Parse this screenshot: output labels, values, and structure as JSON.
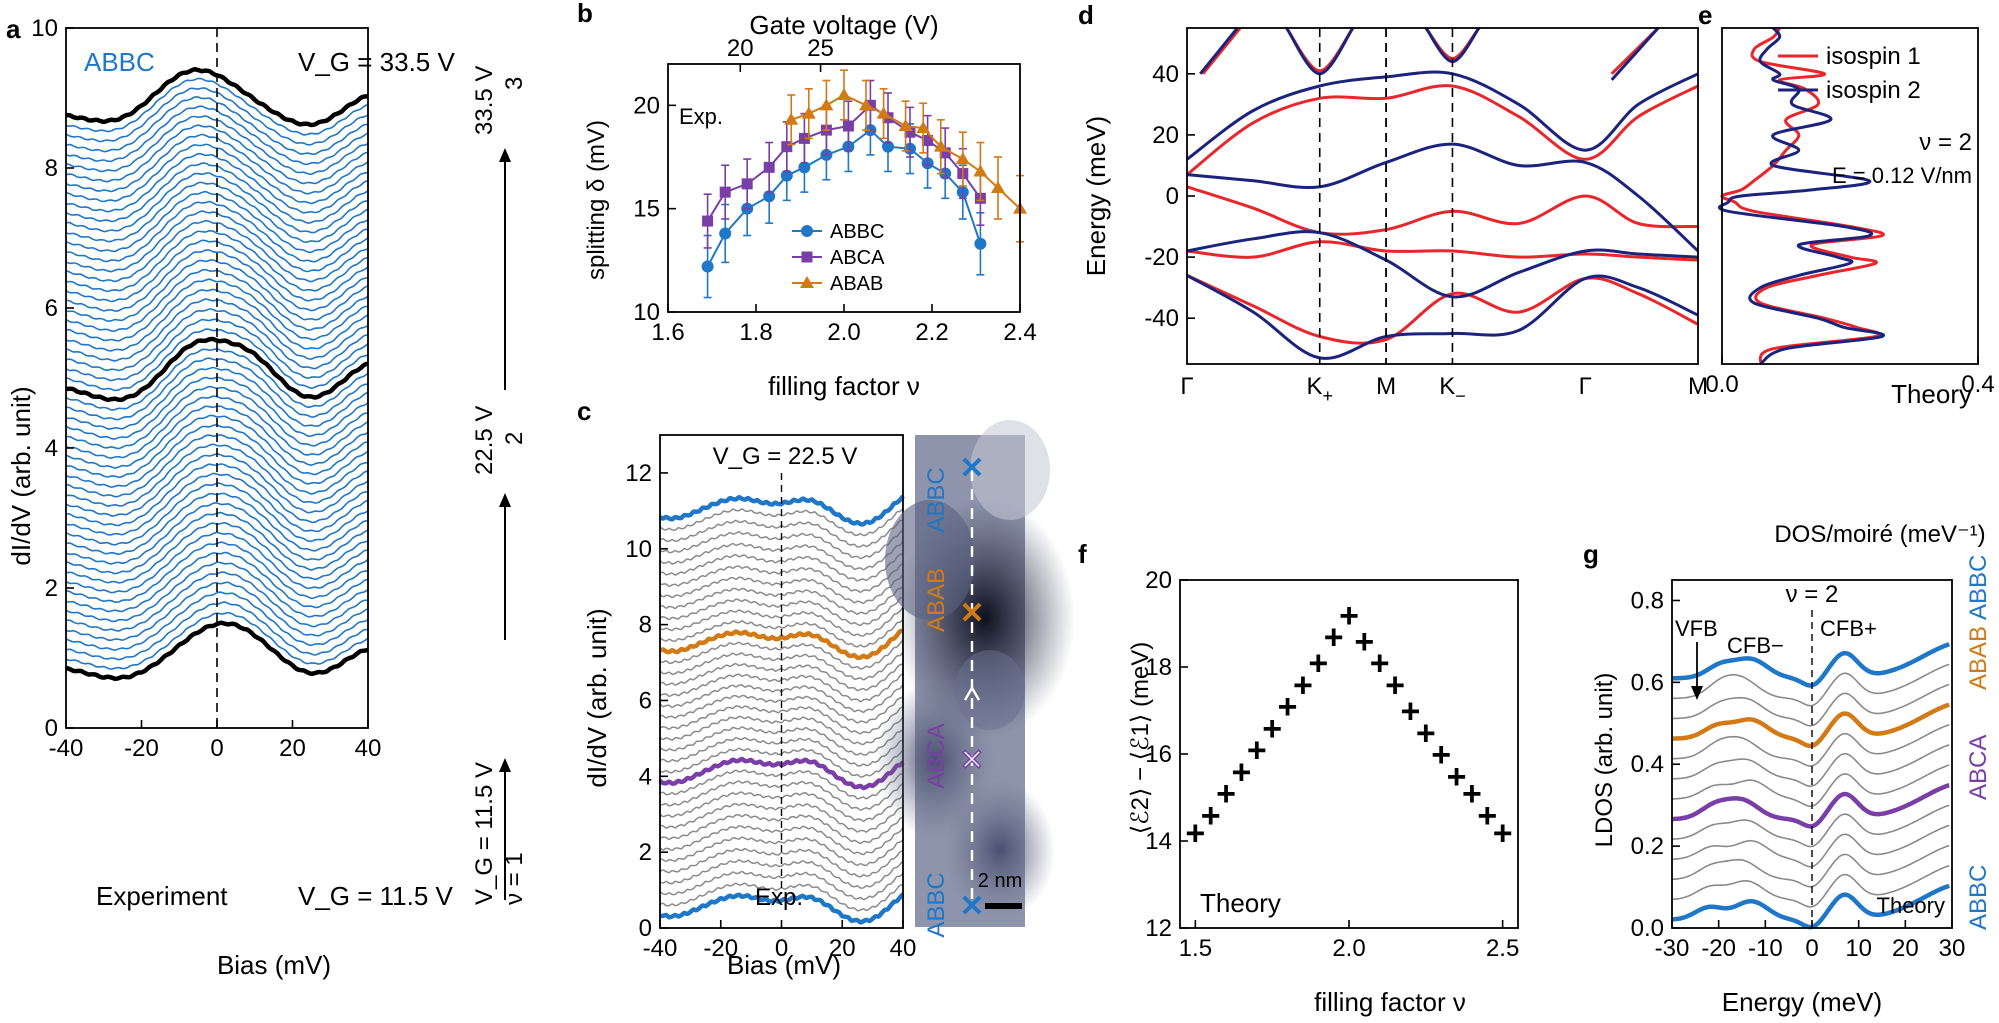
{
  "colors": {
    "abbc": "#1f77c8",
    "abca": "#7a3fa6",
    "abab": "#d17a16",
    "isospin1": "#e8262b",
    "isospin2": "#1b237c",
    "gray": "#8a8a8a"
  },
  "chart_data": [
    {
      "panel": "a",
      "type": "line",
      "xlabel": "Bias (mV)",
      "ylabel": "dI/dV (arb. unit)",
      "xlim": [
        -40,
        40
      ],
      "ylim": [
        0,
        10
      ],
      "xticks": [
        "-40",
        "-20",
        "0",
        "20",
        "40"
      ],
      "yticks": [
        "0",
        "2",
        "4",
        "6",
        "8",
        "10"
      ],
      "label_stacking": "ABBC",
      "label_top": "V_G = 33.5 V",
      "label_bottom": "V_G = 11.5 V",
      "label_experiment": "Experiment",
      "n_spectra": 58,
      "baselines_highlighted": [
        0.9,
        4.8,
        8.8
      ],
      "right_labels": {
        "v_low": "V_G = 11.5 V",
        "nu_low": "ν = 1",
        "v_mid": "22.5 V",
        "nu_mid": "2",
        "v_high": "33.5 V",
        "nu_high": "3"
      }
    },
    {
      "panel": "b",
      "type": "line",
      "title_top_axis": "Gate voltage (V)",
      "top_ticks": [
        "20",
        "25"
      ],
      "xlabel": "filling factor ν",
      "ylabel": "splitting δ (mV)",
      "xlim": [
        1.6,
        2.4
      ],
      "ylim": [
        10,
        22
      ],
      "xticks": [
        "1.6",
        "1.8",
        "2.0",
        "2.2",
        "2.4"
      ],
      "yticks": [
        "10",
        "15",
        "20"
      ],
      "annotation": "Exp.",
      "series": [
        {
          "name": "ABBC",
          "x": [
            1.69,
            1.73,
            1.78,
            1.83,
            1.87,
            1.91,
            1.96,
            2.01,
            2.06,
            2.1,
            2.15,
            2.19,
            2.23,
            2.27,
            2.31
          ],
          "y": [
            12.2,
            13.8,
            15.0,
            15.6,
            16.6,
            17.0,
            17.6,
            18.0,
            18.8,
            18.0,
            17.9,
            17.2,
            16.7,
            15.8,
            13.3
          ],
          "err": [
            1.5,
            1.4,
            1.3,
            1.3,
            1.2,
            1.2,
            1.2,
            1.2,
            1.2,
            1.2,
            1.2,
            1.2,
            1.2,
            1.3,
            1.5
          ]
        },
        {
          "name": "ABCA",
          "x": [
            1.69,
            1.73,
            1.78,
            1.83,
            1.87,
            1.91,
            1.96,
            2.01,
            2.06,
            2.1,
            2.15,
            2.19,
            2.23,
            2.27,
            2.31
          ],
          "y": [
            14.4,
            15.8,
            16.2,
            17.0,
            18.0,
            18.4,
            18.8,
            19.0,
            20.0,
            19.4,
            18.7,
            18.3,
            17.7,
            16.7,
            15.5
          ],
          "err": [
            1.3,
            1.3,
            1.2,
            1.2,
            1.2,
            1.2,
            1.2,
            1.2,
            1.2,
            1.2,
            1.2,
            1.2,
            1.2,
            1.2,
            1.3
          ]
        },
        {
          "name": "ABAB",
          "x": [
            1.88,
            1.92,
            1.96,
            2.0,
            2.05,
            2.09,
            2.14,
            2.18,
            2.22,
            2.27,
            2.31,
            2.35,
            2.4
          ],
          "y": [
            19.3,
            19.6,
            20.0,
            20.5,
            20.0,
            19.6,
            19.0,
            18.9,
            18.0,
            17.4,
            16.8,
            16.0,
            15.0
          ],
          "err": [
            1.2,
            1.2,
            1.2,
            1.2,
            1.2,
            1.2,
            1.2,
            1.2,
            1.3,
            1.3,
            1.4,
            1.5,
            1.6
          ]
        }
      ]
    },
    {
      "panel": "c",
      "type": "line",
      "xlabel": "Bias (mV)",
      "ylabel": "dI/dV (arb. unit)",
      "xlim": [
        -40,
        40
      ],
      "ylim": [
        0,
        13
      ],
      "xticks": [
        "-40",
        "-20",
        "0",
        "20",
        "40"
      ],
      "yticks": [
        "0",
        "2",
        "4",
        "6",
        "8",
        "10",
        "12"
      ],
      "annotation_top": "V_G = 22.5 V",
      "annotation_bottom": "Exp.",
      "n_spectra": 37,
      "highlighted": [
        {
          "name": "ABBC",
          "base": 0.5
        },
        {
          "name": "ABCA",
          "base": 4.0
        },
        {
          "name": "ABAB",
          "base": 7.5
        },
        {
          "name": "ABBC",
          "base": 11.0
        }
      ],
      "image_labels": [
        "ABBC",
        "ABAB",
        "ABCA",
        "ABBC"
      ],
      "scale_bar": "2 nm"
    },
    {
      "panel": "d",
      "type": "line",
      "xlabel": "",
      "ylabel": "Energy (meV)",
      "ylim": [
        -55,
        55
      ],
      "yticks": [
        "-40",
        "-20",
        "0",
        "20",
        "40"
      ],
      "k_path": [
        "Γ",
        "K+",
        "M",
        "K−",
        "Γ",
        "M"
      ],
      "k_pos": [
        0,
        1,
        1.5,
        2,
        3,
        3.85
      ],
      "series": [
        {
          "name": "isospin 1",
          "bands": [
            [
              [
                0,
                7
              ],
              [
                0.5,
                24
              ],
              [
                1,
                32
              ],
              [
                1.5,
                32
              ],
              [
                2,
                36
              ],
              [
                2.5,
                26
              ],
              [
                3,
                12
              ],
              [
                3.4,
                26
              ],
              [
                3.85,
                36
              ]
            ],
            [
              [
                0,
                3
              ],
              [
                0.5,
                -4
              ],
              [
                1,
                -12
              ],
              [
                1.5,
                -11
              ],
              [
                2,
                -5
              ],
              [
                2.5,
                -9
              ],
              [
                3,
                0
              ],
              [
                3.4,
                -9
              ],
              [
                3.85,
                -10
              ]
            ],
            [
              [
                0,
                -18
              ],
              [
                0.5,
                -20
              ],
              [
                1,
                -15
              ],
              [
                1.5,
                -18
              ],
              [
                2,
                -18
              ],
              [
                2.5,
                -20
              ],
              [
                3,
                -19
              ],
              [
                3.4,
                -20
              ],
              [
                3.85,
                -21
              ]
            ],
            [
              [
                0,
                -26
              ],
              [
                0.5,
                -36
              ],
              [
                1,
                -46
              ],
              [
                1.5,
                -47
              ],
              [
                2,
                -32
              ],
              [
                2.5,
                -38
              ],
              [
                3,
                -27
              ],
              [
                3.4,
                -32
              ],
              [
                3.85,
                -42
              ]
            ],
            [
              [
                0.12,
                40
              ],
              [
                0.4,
                55
              ]
            ],
            [
              [
                0.75,
                55
              ],
              [
                1,
                41
              ],
              [
                1.25,
                55
              ]
            ],
            [
              [
                1.8,
                55
              ],
              [
                2,
                45
              ],
              [
                2.2,
                55
              ]
            ],
            [
              [
                3.2,
                40
              ],
              [
                3.55,
                55
              ]
            ]
          ]
        },
        {
          "name": "isospin 2",
          "bands": [
            [
              [
                0,
                12
              ],
              [
                0.5,
                28
              ],
              [
                1,
                36
              ],
              [
                1.5,
                39
              ],
              [
                2,
                40
              ],
              [
                2.5,
                30
              ],
              [
                3,
                15
              ],
              [
                3.4,
                30
              ],
              [
                3.85,
                40
              ]
            ],
            [
              [
                0,
                7
              ],
              [
                0.5,
                5
              ],
              [
                1,
                3
              ],
              [
                1.5,
                11
              ],
              [
                2,
                17
              ],
              [
                2.5,
                10
              ],
              [
                3,
                11
              ],
              [
                3.4,
                0
              ],
              [
                3.85,
                -18
              ]
            ],
            [
              [
                0,
                -18
              ],
              [
                0.5,
                -14
              ],
              [
                1,
                -12
              ],
              [
                1.5,
                -21
              ],
              [
                2,
                -33
              ],
              [
                2.5,
                -25
              ],
              [
                3,
                -18
              ],
              [
                3.4,
                -19
              ],
              [
                3.85,
                -20
              ]
            ],
            [
              [
                0,
                -26
              ],
              [
                0.5,
                -38
              ],
              [
                1,
                -53
              ],
              [
                1.5,
                -46
              ],
              [
                2,
                -45
              ],
              [
                2.5,
                -44
              ],
              [
                3,
                -27
              ],
              [
                3.4,
                -30
              ],
              [
                3.85,
                -39
              ]
            ],
            [
              [
                0.1,
                40
              ],
              [
                0.38,
                55
              ]
            ],
            [
              [
                0.75,
                55
              ],
              [
                1,
                40
              ],
              [
                1.25,
                55
              ]
            ],
            [
              [
                1.8,
                55
              ],
              [
                2,
                44
              ],
              [
                2.2,
                55
              ]
            ],
            [
              [
                3.2,
                38
              ],
              [
                3.55,
                55
              ]
            ]
          ]
        }
      ]
    },
    {
      "panel": "e",
      "type": "line",
      "xlabel": "DOS/moiré (meV⁻¹)",
      "xlim": [
        0,
        0.4
      ],
      "ylim": [
        -55,
        55
      ],
      "xticks": [
        "0.0",
        "0.4"
      ],
      "legend": [
        "isospin 1",
        "isospin 2"
      ],
      "annotation_nu": "ν = 2",
      "annotation_field": "E = 0.12 V/nm",
      "annotation_theory": "Theory",
      "series": [
        {
          "name": "isospin 1",
          "E": [
            -55,
            -50,
            -46,
            -43,
            -40,
            -35,
            -30,
            -26,
            -22,
            -20,
            -16,
            -13,
            -10,
            -5,
            -2,
            0,
            2,
            5,
            10,
            15,
            20,
            25,
            30,
            35,
            38,
            40,
            44,
            48,
            52,
            55
          ],
          "dos": [
            0.06,
            0.08,
            0.24,
            0.21,
            0.16,
            0.06,
            0.07,
            0.15,
            0.24,
            0.2,
            0.14,
            0.25,
            0.2,
            0.05,
            0.02,
            0.0,
            0.03,
            0.05,
            0.08,
            0.1,
            0.12,
            0.1,
            0.15,
            0.13,
            0.09,
            0.16,
            0.06,
            0.05,
            0.08,
            0.09
          ]
        },
        {
          "name": "isospin 2",
          "E": [
            -55,
            -50,
            -46,
            -43,
            -40,
            -35,
            -30,
            -26,
            -22,
            -20,
            -16,
            -13,
            -10,
            -5,
            -2,
            0,
            2,
            5,
            10,
            15,
            20,
            25,
            30,
            35,
            38,
            40,
            44,
            48,
            52,
            55
          ],
          "dos": [
            0.06,
            0.1,
            0.25,
            0.19,
            0.15,
            0.05,
            0.06,
            0.12,
            0.2,
            0.18,
            0.12,
            0.23,
            0.19,
            0.01,
            0.01,
            0.03,
            0.14,
            0.23,
            0.08,
            0.12,
            0.08,
            0.17,
            0.11,
            0.12,
            0.08,
            0.09,
            0.06,
            0.07,
            0.09,
            0.08
          ]
        }
      ]
    },
    {
      "panel": "f",
      "type": "scatter",
      "xlabel": "filling factor ν",
      "ylabel": "⟨ℰ2⟩ − ⟨ℰ1⟩ (meV)",
      "xlim": [
        1.45,
        2.55
      ],
      "ylim": [
        12,
        20
      ],
      "xticks": [
        "1.5",
        "2.0",
        "2.5"
      ],
      "yticks": [
        "12",
        "14",
        "16",
        "18",
        "20"
      ],
      "annotation": "Theory",
      "x": [
        1.5,
        1.55,
        1.6,
        1.65,
        1.7,
        1.75,
        1.8,
        1.85,
        1.9,
        1.95,
        2.0,
        2.05,
        2.1,
        2.15,
        2.2,
        2.25,
        2.3,
        2.35,
        2.4,
        2.45,
        2.5
      ],
      "y": [
        14.2,
        14.6,
        15.1,
        15.6,
        16.1,
        16.6,
        17.1,
        17.6,
        18.1,
        18.7,
        19.2,
        18.6,
        18.1,
        17.6,
        17.0,
        16.5,
        16.0,
        15.5,
        15.1,
        14.6,
        14.2
      ]
    },
    {
      "panel": "g",
      "type": "line",
      "xlabel": "Energy (meV)",
      "ylabel": "LDOS (arb. unit)",
      "xlim": [
        -30,
        30
      ],
      "ylim": [
        0,
        0.85
      ],
      "xticks": [
        "-30",
        "-20",
        "-10",
        "0",
        "10",
        "20",
        "30"
      ],
      "yticks": [
        "0.0",
        "0.2",
        "0.4",
        "0.6",
        "0.8"
      ],
      "annotation_nu": "ν = 2",
      "annotation_vfb": "VFB",
      "annotation_cfbm": "CFB−",
      "annotation_cfbp": "CFB+",
      "annotation_theory": "Theory",
      "right_labels": [
        "ABBC",
        "ABCA",
        "ABAB",
        "ABBC"
      ],
      "highlighted": [
        {
          "name": "ABBC",
          "base": 0.02
        },
        {
          "name": "ABCA",
          "base": 0.25
        },
        {
          "name": "ABAB",
          "base": 0.47
        },
        {
          "name": "ABBC",
          "base": 0.61
        }
      ]
    }
  ]
}
